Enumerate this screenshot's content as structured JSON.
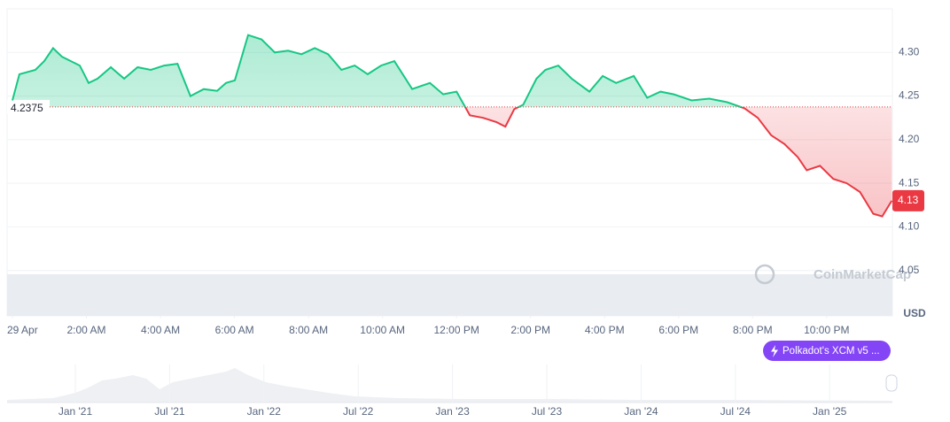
{
  "chart_data": {
    "type": "line",
    "x": [
      0,
      0.19,
      0.62,
      0.86,
      1.1,
      1.34,
      1.58,
      1.82,
      2.06,
      2.3,
      2.66,
      3.02,
      3.38,
      3.74,
      4.1,
      4.46,
      4.81,
      5.17,
      5.53,
      5.77,
      6.01,
      6.37,
      6.73,
      7.09,
      7.45,
      7.81,
      8.17,
      8.53,
      8.89,
      9.25,
      9.6,
      9.96,
      10.32,
      10.8,
      11.28,
      11.64,
      12.0,
      12.36,
      12.72,
      13.08,
      13.32,
      13.56,
      13.8,
      14.16,
      14.4,
      14.75,
      15.11,
      15.59,
      15.95,
      16.31,
      16.79,
      17.15,
      17.51,
      17.87,
      18.35,
      18.83,
      19.31,
      19.78,
      20.14,
      20.5,
      20.86,
      21.22,
      21.46,
      21.82,
      22.18,
      22.54,
      22.9,
      23.26,
      23.5,
      23.76
    ],
    "series": [
      {
        "name": "Price",
        "color": "#16c784",
        "color_below": "#ea3943",
        "values": [
          4.245,
          4.275,
          4.28,
          4.29,
          4.305,
          4.295,
          4.29,
          4.285,
          4.265,
          4.27,
          4.283,
          4.27,
          4.283,
          4.28,
          4.285,
          4.287,
          4.25,
          4.258,
          4.256,
          4.265,
          4.268,
          4.32,
          4.315,
          4.3,
          4.302,
          4.298,
          4.305,
          4.298,
          4.28,
          4.285,
          4.275,
          4.285,
          4.29,
          4.258,
          4.265,
          4.252,
          4.255,
          4.228,
          4.225,
          4.22,
          4.215,
          4.235,
          4.24,
          4.27,
          4.28,
          4.285,
          4.27,
          4.255,
          4.273,
          4.265,
          4.273,
          4.248,
          4.255,
          4.252,
          4.245,
          4.247,
          4.243,
          4.236,
          4.225,
          4.205,
          4.195,
          4.18,
          4.165,
          4.17,
          4.155,
          4.15,
          4.14,
          4.115,
          4.112,
          4.13
        ]
      }
    ],
    "xlim": [
      0,
      23.8
    ],
    "xticks": [
      {
        "value": 0,
        "label": "29 Apr"
      },
      {
        "value": 2,
        "label": "2:00 AM"
      },
      {
        "value": 4,
        "label": "4:00 AM"
      },
      {
        "value": 6,
        "label": "6:00 AM"
      },
      {
        "value": 8,
        "label": "8:00 AM"
      },
      {
        "value": 10,
        "label": "10:00 AM"
      },
      {
        "value": 12,
        "label": "12:00 PM"
      },
      {
        "value": 14,
        "label": "2:00 PM"
      },
      {
        "value": 16,
        "label": "4:00 PM"
      },
      {
        "value": 18,
        "label": "6:00 PM"
      },
      {
        "value": 20,
        "label": "8:00 PM"
      },
      {
        "value": 22,
        "label": "10:00 PM"
      }
    ],
    "ylim": [
      4.0,
      4.35
    ],
    "yticks": [
      4.05,
      {
        "value": 4.1,
        "label": "4.10"
      },
      4.15,
      {
        "value": 4.2,
        "label": "4.20"
      },
      4.25,
      {
        "value": 4.3,
        "label": "4.30"
      }
    ],
    "y_unit": "USD",
    "baseline": 4.2375,
    "last_price": 4.13,
    "watermark": "CoinMarketCap",
    "event": "Polkadot's XCM v5 ...",
    "grid": true,
    "navigator_labels": [
      "Jan '21",
      "Jul '21",
      "Jan '22",
      "Jul '22",
      "Jan '23",
      "Jul '23",
      "Jan '24",
      "Jul '24",
      "Jan '25"
    ]
  }
}
